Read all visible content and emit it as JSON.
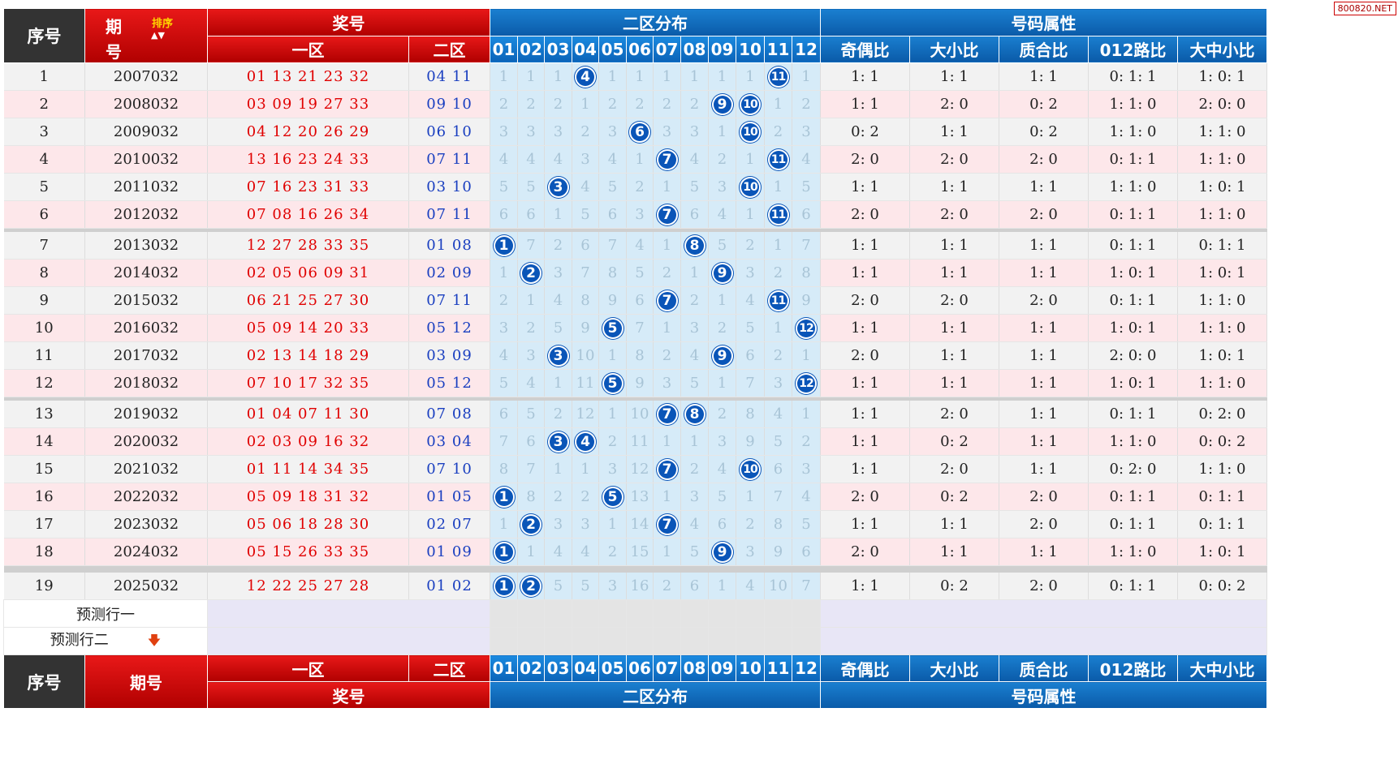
{
  "watermark": "800820.NET",
  "header": {
    "seq": "序号",
    "issue_top": "期",
    "issue_bottom": "号",
    "sort_label": "排序",
    "sort_arrows": "▲▼",
    "prize": "奖号",
    "zone1": "一区",
    "zone2": "二区",
    "dist": "二区分布",
    "attr": "号码属性",
    "dist_numbers": [
      "01",
      "02",
      "03",
      "04",
      "05",
      "06",
      "07",
      "08",
      "09",
      "10",
      "11",
      "12"
    ],
    "attr_cols": [
      "奇偶比",
      "大小比",
      "质合比",
      "012路比",
      "大中小比"
    ]
  },
  "footer": {
    "seq": "序号",
    "issue": "期号"
  },
  "rows": [
    {
      "seq": "1",
      "issue": "2007032",
      "front": "01 13 21 23 32",
      "back": "04 11",
      "dist": [
        "1",
        "1",
        "1",
        "4",
        "1",
        "1",
        "1",
        "1",
        "1",
        "1",
        "11",
        "1"
      ],
      "hits": [
        3,
        10
      ],
      "attrs": [
        "1: 1",
        "1: 1",
        "1: 1",
        "0: 1: 1",
        "1: 0: 1"
      ]
    },
    {
      "seq": "2",
      "issue": "2008032",
      "front": "03 09 19 27 33",
      "back": "09 10",
      "dist": [
        "2",
        "2",
        "2",
        "1",
        "2",
        "2",
        "2",
        "2",
        "9",
        "10",
        "1",
        "2"
      ],
      "hits": [
        8,
        9
      ],
      "attrs": [
        "1: 1",
        "2: 0",
        "0: 2",
        "1: 1: 0",
        "2: 0: 0"
      ]
    },
    {
      "seq": "3",
      "issue": "2009032",
      "front": "04 12 20 26 29",
      "back": "06 10",
      "dist": [
        "3",
        "3",
        "3",
        "2",
        "3",
        "6",
        "3",
        "3",
        "1",
        "10",
        "2",
        "3"
      ],
      "hits": [
        5,
        9
      ],
      "attrs": [
        "0: 2",
        "1: 1",
        "0: 2",
        "1: 1: 0",
        "1: 1: 0"
      ]
    },
    {
      "seq": "4",
      "issue": "2010032",
      "front": "13 16 23 24 33",
      "back": "07 11",
      "dist": [
        "4",
        "4",
        "4",
        "3",
        "4",
        "1",
        "7",
        "4",
        "2",
        "1",
        "11",
        "4"
      ],
      "hits": [
        6,
        10
      ],
      "attrs": [
        "2: 0",
        "2: 0",
        "2: 0",
        "0: 1: 1",
        "1: 1: 0"
      ]
    },
    {
      "seq": "5",
      "issue": "2011032",
      "front": "07 16 23 31 33",
      "back": "03 10",
      "dist": [
        "5",
        "5",
        "3",
        "4",
        "5",
        "2",
        "1",
        "5",
        "3",
        "10",
        "1",
        "5"
      ],
      "hits": [
        2,
        9
      ],
      "attrs": [
        "1: 1",
        "1: 1",
        "1: 1",
        "1: 1: 0",
        "1: 0: 1"
      ]
    },
    {
      "seq": "6",
      "issue": "2012032",
      "front": "07 08 16 26 34",
      "back": "07 11",
      "dist": [
        "6",
        "6",
        "1",
        "5",
        "6",
        "3",
        "7",
        "6",
        "4",
        "1",
        "11",
        "6"
      ],
      "hits": [
        6,
        10
      ],
      "attrs": [
        "2: 0",
        "2: 0",
        "2: 0",
        "0: 1: 1",
        "1: 1: 0"
      ],
      "sep_after": true
    },
    {
      "seq": "7",
      "issue": "2013032",
      "front": "12 27 28 33 35",
      "back": "01 08",
      "dist": [
        "1",
        "7",
        "2",
        "6",
        "7",
        "4",
        "1",
        "8",
        "5",
        "2",
        "1",
        "7"
      ],
      "hits": [
        0,
        7
      ],
      "attrs": [
        "1: 1",
        "1: 1",
        "1: 1",
        "0: 1: 1",
        "0: 1: 1"
      ]
    },
    {
      "seq": "8",
      "issue": "2014032",
      "front": "02 05 06 09 31",
      "back": "02 09",
      "dist": [
        "1",
        "2",
        "3",
        "7",
        "8",
        "5",
        "2",
        "1",
        "9",
        "3",
        "2",
        "8"
      ],
      "hits": [
        1,
        8
      ],
      "attrs": [
        "1: 1",
        "1: 1",
        "1: 1",
        "1: 0: 1",
        "1: 0: 1"
      ]
    },
    {
      "seq": "9",
      "issue": "2015032",
      "front": "06 21 25 27 30",
      "back": "07 11",
      "dist": [
        "2",
        "1",
        "4",
        "8",
        "9",
        "6",
        "7",
        "2",
        "1",
        "4",
        "11",
        "9"
      ],
      "hits": [
        6,
        10
      ],
      "attrs": [
        "2: 0",
        "2: 0",
        "2: 0",
        "0: 1: 1",
        "1: 1: 0"
      ]
    },
    {
      "seq": "10",
      "issue": "2016032",
      "front": "05 09 14 20 33",
      "back": "05 12",
      "dist": [
        "3",
        "2",
        "5",
        "9",
        "5",
        "7",
        "1",
        "3",
        "2",
        "5",
        "1",
        "12"
      ],
      "hits": [
        4,
        11
      ],
      "attrs": [
        "1: 1",
        "1: 1",
        "1: 1",
        "1: 0: 1",
        "1: 1: 0"
      ]
    },
    {
      "seq": "11",
      "issue": "2017032",
      "front": "02 13 14 18 29",
      "back": "03 09",
      "dist": [
        "4",
        "3",
        "3",
        "10",
        "1",
        "8",
        "2",
        "4",
        "9",
        "6",
        "2",
        "1"
      ],
      "hits": [
        2,
        8
      ],
      "attrs": [
        "2: 0",
        "1: 1",
        "1: 1",
        "2: 0: 0",
        "1: 0: 1"
      ]
    },
    {
      "seq": "12",
      "issue": "2018032",
      "front": "07 10 17 32 35",
      "back": "05 12",
      "dist": [
        "5",
        "4",
        "1",
        "11",
        "5",
        "9",
        "3",
        "5",
        "1",
        "7",
        "3",
        "12"
      ],
      "hits": [
        4,
        11
      ],
      "attrs": [
        "1: 1",
        "1: 1",
        "1: 1",
        "1: 0: 1",
        "1: 1: 0"
      ],
      "sep_after": true
    },
    {
      "seq": "13",
      "issue": "2019032",
      "front": "01 04 07 11 30",
      "back": "07 08",
      "dist": [
        "6",
        "5",
        "2",
        "12",
        "1",
        "10",
        "7",
        "8",
        "2",
        "8",
        "4",
        "1"
      ],
      "hits": [
        6,
        7
      ],
      "attrs": [
        "1: 1",
        "2: 0",
        "1: 1",
        "0: 1: 1",
        "0: 2: 0"
      ]
    },
    {
      "seq": "14",
      "issue": "2020032",
      "front": "02 03 09 16 32",
      "back": "03 04",
      "dist": [
        "7",
        "6",
        "3",
        "4",
        "2",
        "11",
        "1",
        "1",
        "3",
        "9",
        "5",
        "2"
      ],
      "hits": [
        2,
        3
      ],
      "attrs": [
        "1: 1",
        "0: 2",
        "1: 1",
        "1: 1: 0",
        "0: 0: 2"
      ]
    },
    {
      "seq": "15",
      "issue": "2021032",
      "front": "01 11 14 34 35",
      "back": "07 10",
      "dist": [
        "8",
        "7",
        "1",
        "1",
        "3",
        "12",
        "7",
        "2",
        "4",
        "10",
        "6",
        "3"
      ],
      "hits": [
        6,
        9
      ],
      "attrs": [
        "1: 1",
        "2: 0",
        "1: 1",
        "0: 2: 0",
        "1: 1: 0"
      ]
    },
    {
      "seq": "16",
      "issue": "2022032",
      "front": "05 09 18 31 32",
      "back": "01 05",
      "dist": [
        "1",
        "8",
        "2",
        "2",
        "5",
        "13",
        "1",
        "3",
        "5",
        "1",
        "7",
        "4"
      ],
      "hits": [
        0,
        4
      ],
      "attrs": [
        "2: 0",
        "0: 2",
        "2: 0",
        "0: 1: 1",
        "0: 1: 1"
      ]
    },
    {
      "seq": "17",
      "issue": "2023032",
      "front": "05 06 18 28 30",
      "back": "02 07",
      "dist": [
        "1",
        "2",
        "3",
        "3",
        "1",
        "14",
        "7",
        "4",
        "6",
        "2",
        "8",
        "5"
      ],
      "hits": [
        1,
        6
      ],
      "attrs": [
        "1: 1",
        "1: 1",
        "2: 0",
        "0: 1: 1",
        "0: 1: 1"
      ]
    },
    {
      "seq": "18",
      "issue": "2024032",
      "front": "05 15 26 33 35",
      "back": "01 09",
      "dist": [
        "1",
        "1",
        "4",
        "4",
        "2",
        "15",
        "1",
        "5",
        "9",
        "3",
        "9",
        "6"
      ],
      "hits": [
        0,
        8
      ],
      "attrs": [
        "2: 0",
        "1: 1",
        "1: 1",
        "1: 1: 0",
        "1: 0: 1"
      ],
      "sep_after": true
    },
    {
      "seq": "19",
      "issue": "2025032",
      "front": "12 22 25 27 28",
      "back": "01 02",
      "dist": [
        "1",
        "2",
        "5",
        "5",
        "3",
        "16",
        "2",
        "6",
        "1",
        "4",
        "10",
        "7"
      ],
      "hits": [
        0,
        1
      ],
      "attrs": [
        "1: 1",
        "0: 2",
        "2: 0",
        "0: 1: 1",
        "0: 0: 2"
      ]
    }
  ],
  "predict": [
    {
      "label": "预测行一",
      "arrow": ""
    },
    {
      "label": "预测行二",
      "arrow": "🡇"
    }
  ],
  "colors": {
    "header_red": "#c80000",
    "header_blue": "#0b63b8",
    "header_dark": "#333333",
    "ball_blue": "#0a55b8",
    "front_red": "#e00000",
    "back_blue": "#1a3fc0"
  }
}
